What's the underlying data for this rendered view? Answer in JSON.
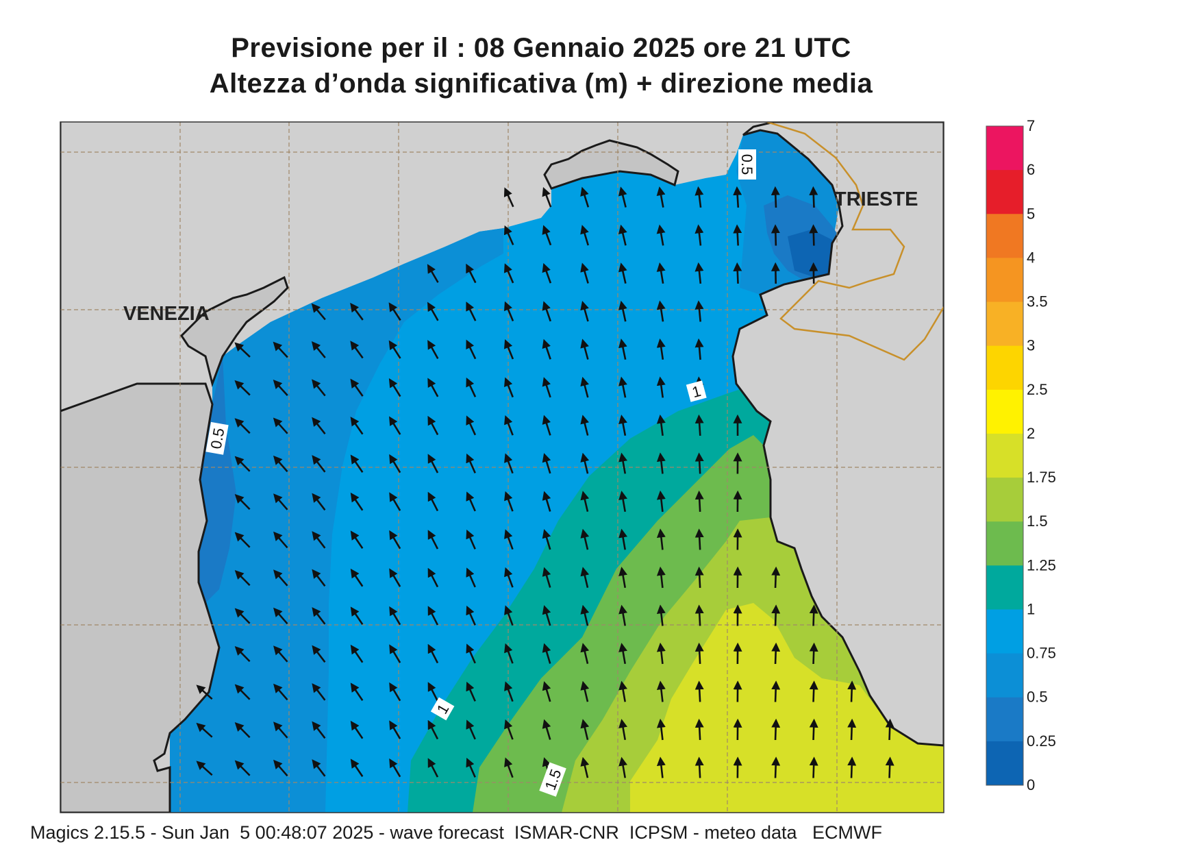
{
  "title_line1": "Previsione per il  :  08  Gennaio  2025   ore 21 UTC",
  "title_line2": "Altezza d’onda significativa (m) + direzione media",
  "footer": "Magics 2.15.5 - Sun Jan  5 00:48:07 2025 - wave forecast  ISMAR-CNR  ICPSM - meteo data   ECMWF",
  "places": {
    "venezia": "VENEZIA",
    "trieste": "TRIESTE"
  },
  "contour_labels": [
    "0.5",
    "0.5",
    "1",
    "1",
    "1.5"
  ],
  "colorbar": {
    "labels": [
      "7",
      "6",
      "5",
      "4",
      "3.5",
      "3",
      "2.5",
      "2",
      "1.75",
      "1.5",
      "1.25",
      "1",
      "0.75",
      "0.5",
      "0.25",
      "0"
    ],
    "colors": [
      "#ec1560",
      "#e61e2a",
      "#f07822",
      "#f59521",
      "#f8b125",
      "#fdd500",
      "#fff200",
      "#d7e028",
      "#a7cd3a",
      "#6dbb4e",
      "#00a99d",
      "#009fe3",
      "#0c8fd6",
      "#1a7ac6",
      "#0d65b3"
    ]
  },
  "colors": {
    "land": "#d0d0d0",
    "coast": "#1a1a1a",
    "border": "#c8902a",
    "grid": "#a08868"
  }
}
